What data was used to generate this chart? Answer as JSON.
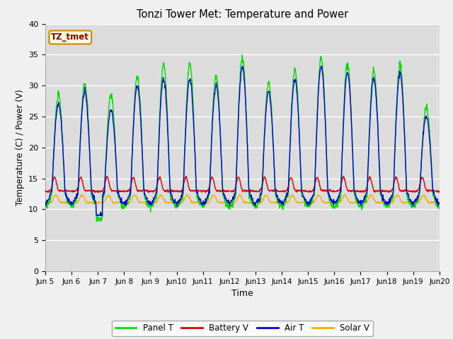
{
  "title": "Tonzi Tower Met: Temperature and Power",
  "xlabel": "Time",
  "ylabel": "Temperature (C) / Power (V)",
  "annotation": "TZ_tmet",
  "xlim_days": [
    5,
    20
  ],
  "ylim": [
    0,
    40
  ],
  "yticks": [
    0,
    5,
    10,
    15,
    20,
    25,
    30,
    35,
    40
  ],
  "bg_color": "#dcdcdc",
  "grid_color": "#ffffff",
  "panel_color": "#00dd00",
  "battery_color": "#dd0000",
  "air_color": "#0000dd",
  "solar_color": "#ffaa00",
  "legend_labels": [
    "Panel T",
    "Battery V",
    "Air T",
    "Solar V"
  ],
  "fig_bg": "#f0f0f0"
}
